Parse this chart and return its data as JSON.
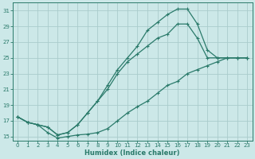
{
  "xlabel": "Humidex (Indice chaleur)",
  "bg_color": "#cce8e8",
  "grid_color": "#aacccc",
  "line_color": "#2a7a6a",
  "xlim": [
    -0.5,
    23.5
  ],
  "ylim": [
    14.5,
    32
  ],
  "xticks": [
    0,
    1,
    2,
    3,
    4,
    5,
    6,
    7,
    8,
    9,
    10,
    11,
    12,
    13,
    14,
    15,
    16,
    17,
    18,
    19,
    20,
    21,
    22,
    23
  ],
  "yticks": [
    15,
    17,
    19,
    21,
    23,
    25,
    27,
    29,
    31
  ],
  "line1_x": [
    0,
    1,
    2,
    3,
    4,
    5,
    6,
    7,
    8,
    9,
    10,
    11,
    12,
    13,
    14,
    15,
    16,
    17,
    18,
    19,
    20,
    21,
    22,
    23
  ],
  "line1_y": [
    17.5,
    16.8,
    16.5,
    16.2,
    15.2,
    15.5,
    16.5,
    18.0,
    19.5,
    21.5,
    23.5,
    25.0,
    26.5,
    28.5,
    29.5,
    30.5,
    31.2,
    31.2,
    29.3,
    26.0,
    25.0,
    25.0,
    25.0,
    25.0
  ],
  "line2_x": [
    0,
    1,
    2,
    3,
    4,
    5,
    6,
    7,
    8,
    9,
    10,
    11,
    12,
    13,
    14,
    15,
    16,
    17,
    18,
    19,
    20,
    21,
    22,
    23
  ],
  "line2_y": [
    17.5,
    16.8,
    16.5,
    16.2,
    15.2,
    15.5,
    16.5,
    18.0,
    19.5,
    21.0,
    23.0,
    24.5,
    25.5,
    26.5,
    27.5,
    28.0,
    29.3,
    29.3,
    27.5,
    25.0,
    25.0,
    25.0,
    25.0,
    25.0
  ],
  "line3_x": [
    0,
    1,
    2,
    3,
    4,
    5,
    6,
    7,
    8,
    9,
    10,
    11,
    12,
    13,
    14,
    15,
    16,
    17,
    18,
    19,
    20,
    21,
    22,
    23
  ],
  "line3_y": [
    17.5,
    16.8,
    16.5,
    15.5,
    14.8,
    15.0,
    15.2,
    15.3,
    15.5,
    16.0,
    17.0,
    18.0,
    18.8,
    19.5,
    20.5,
    21.5,
    22.0,
    23.0,
    23.5,
    24.0,
    24.5,
    25.0,
    25.0,
    25.0
  ]
}
